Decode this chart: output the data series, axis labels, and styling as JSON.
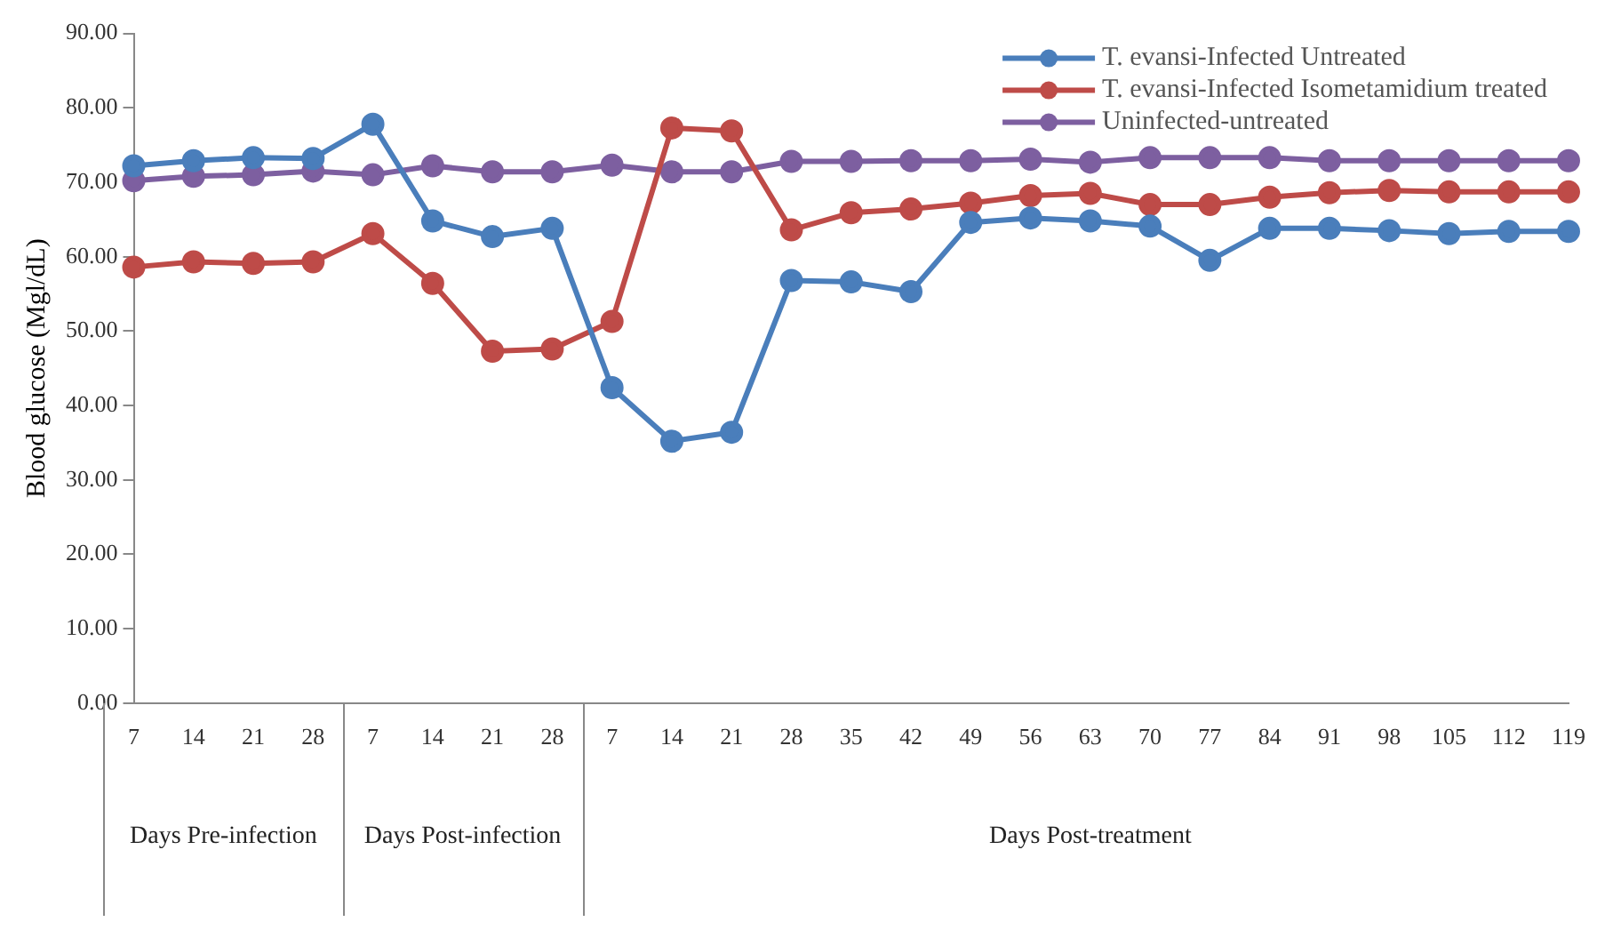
{
  "chart_data": {
    "type": "line",
    "ylabel": "Blood glucose (Mgl/dL)",
    "categories": [
      "7",
      "14",
      "21",
      "28",
      "7",
      "14",
      "21",
      "28",
      "7",
      "14",
      "21",
      "28",
      "35",
      "42",
      "49",
      "56",
      "63",
      "70",
      "77",
      "84",
      "91",
      "98",
      "105",
      "112",
      "119"
    ],
    "series": [
      {
        "name": "T. evansi-Infected Untreated",
        "color": "#4a7ebb",
        "values": [
          72.2,
          72.9,
          73.3,
          73.2,
          77.8,
          64.8,
          62.7,
          63.8,
          42.4,
          35.2,
          36.4,
          56.8,
          56.6,
          55.3,
          64.6,
          65.2,
          64.8,
          64.1,
          59.5,
          63.8,
          63.8,
          63.5,
          63.1,
          63.4,
          63.4
        ]
      },
      {
        "name": "T. evansi-Infected Isometamidium treated",
        "color": "#be4b48",
        "values": [
          58.6,
          59.3,
          59.1,
          59.3,
          63.1,
          56.4,
          47.3,
          47.6,
          51.3,
          77.3,
          76.9,
          63.6,
          65.9,
          66.4,
          67.2,
          68.2,
          68.5,
          67.0,
          67.0,
          68.0,
          68.6,
          68.9,
          68.7,
          68.7,
          68.7
        ]
      },
      {
        "name": "Uninfected-untreated",
        "color": "#7d5fa0",
        "values": [
          70.2,
          70.8,
          71.0,
          71.5,
          71.0,
          72.2,
          71.4,
          71.4,
          72.3,
          71.4,
          71.4,
          72.8,
          72.8,
          72.9,
          72.9,
          73.1,
          72.7,
          73.3,
          73.3,
          73.3,
          72.9,
          72.9,
          72.9,
          72.9,
          72.9
        ]
      }
    ],
    "ylim": [
      0,
      90
    ],
    "yticks": [
      {
        "value": 0,
        "label": "0.00"
      },
      {
        "value": 10,
        "label": "10.00"
      },
      {
        "value": 20,
        "label": "20.00"
      },
      {
        "value": 30,
        "label": "30.00"
      },
      {
        "value": 40,
        "label": "40.00"
      },
      {
        "value": 50,
        "label": "50.00"
      },
      {
        "value": 60,
        "label": "60.00"
      },
      {
        "value": 70,
        "label": "70.00"
      },
      {
        "value": 80,
        "label": "80.00"
      },
      {
        "value": 90,
        "label": "90.00"
      }
    ],
    "annotations": [
      "Days Pre-infection",
      "Days Post-infection",
      "Days Post-treatment"
    ],
    "grid": false,
    "legend": "top right",
    "marker": "circle",
    "line_style": "solid"
  }
}
